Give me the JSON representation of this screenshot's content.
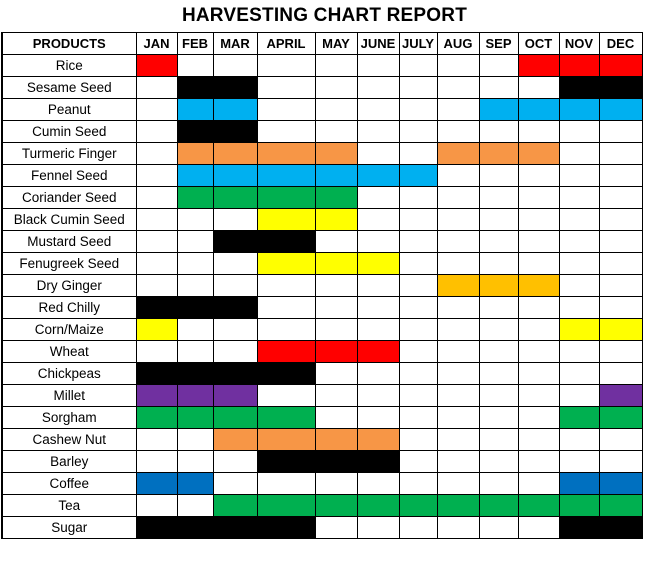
{
  "chart_data": {
    "type": "table",
    "title": "HARVESTING CHART REPORT",
    "header_label": "PRODUCTS",
    "months": [
      "JAN",
      "FEB",
      "MAR",
      "APRIL",
      "MAY",
      "JUNE",
      "JULY",
      "AUG",
      "SEP",
      "OCT",
      "NOV",
      "DEC"
    ],
    "colors": {
      "red": "#ff0000",
      "black": "#000000",
      "light_blue": "#00b0f0",
      "orange": "#f79646",
      "green": "#00b050",
      "yellow": "#ffff00",
      "gold": "#ffc000",
      "purple": "#7030a0",
      "blue": "#0070c0"
    },
    "rows": [
      {
        "product": "Rice",
        "color": "red",
        "months": [
          "JAN",
          "OCT",
          "NOV",
          "DEC"
        ]
      },
      {
        "product": "Sesame Seed",
        "color": "black",
        "months": [
          "FEB",
          "MAR",
          "NOV",
          "DEC"
        ]
      },
      {
        "product": "Peanut",
        "color": "light_blue",
        "months": [
          "FEB",
          "MAR",
          "SEP",
          "OCT",
          "NOV",
          "DEC"
        ]
      },
      {
        "product": "Cumin Seed",
        "color": "black",
        "months": [
          "FEB",
          "MAR"
        ]
      },
      {
        "product": "Turmeric Finger",
        "color": "orange",
        "months": [
          "FEB",
          "MAR",
          "APRIL",
          "MAY",
          "AUG",
          "SEP",
          "OCT"
        ]
      },
      {
        "product": "Fennel Seed",
        "color": "light_blue",
        "months": [
          "FEB",
          "MAR",
          "APRIL",
          "MAY",
          "JUNE",
          "JULY"
        ]
      },
      {
        "product": "Coriander Seed",
        "color": "green",
        "months": [
          "FEB",
          "MAR",
          "APRIL",
          "MAY"
        ]
      },
      {
        "product": "Black Cumin Seed",
        "color": "yellow",
        "months": [
          "APRIL",
          "MAY"
        ]
      },
      {
        "product": "Mustard Seed",
        "color": "black",
        "months": [
          "MAR",
          "APRIL"
        ]
      },
      {
        "product": "Fenugreek Seed",
        "color": "yellow",
        "months": [
          "APRIL",
          "MAY",
          "JUNE"
        ]
      },
      {
        "product": "Dry Ginger",
        "color": "gold",
        "months": [
          "AUG",
          "SEP",
          "OCT"
        ]
      },
      {
        "product": "Red Chilly",
        "color": "black",
        "months": [
          "JAN",
          "FEB",
          "MAR"
        ]
      },
      {
        "product": "Corn/Maize",
        "color": "yellow",
        "months": [
          "JAN",
          "NOV",
          "DEC"
        ]
      },
      {
        "product": "Wheat",
        "color": "red",
        "months": [
          "APRIL",
          "MAY",
          "JUNE"
        ]
      },
      {
        "product": "Chickpeas",
        "color": "black",
        "months": [
          "JAN",
          "FEB",
          "MAR",
          "APRIL"
        ]
      },
      {
        "product": "Millet",
        "color": "purple",
        "months": [
          "JAN",
          "FEB",
          "MAR",
          "DEC"
        ]
      },
      {
        "product": "Sorgham",
        "color": "green",
        "months": [
          "JAN",
          "FEB",
          "MAR",
          "APRIL",
          "NOV",
          "DEC"
        ]
      },
      {
        "product": "Cashew Nut",
        "color": "orange",
        "months": [
          "MAR",
          "APRIL",
          "MAY",
          "JUNE"
        ]
      },
      {
        "product": "Barley",
        "color": "black",
        "months": [
          "APRIL",
          "MAY",
          "JUNE"
        ]
      },
      {
        "product": "Coffee",
        "color": "blue",
        "months": [
          "JAN",
          "FEB",
          "NOV",
          "DEC"
        ]
      },
      {
        "product": "Tea",
        "color": "green",
        "months": [
          "MAR",
          "APRIL",
          "MAY",
          "JUNE",
          "JULY",
          "AUG",
          "SEP",
          "OCT",
          "NOV",
          "DEC"
        ]
      },
      {
        "product": "Sugar",
        "color": "black",
        "months": [
          "JAN",
          "FEB",
          "MAR",
          "APRIL",
          "NOV",
          "DEC"
        ]
      }
    ]
  }
}
